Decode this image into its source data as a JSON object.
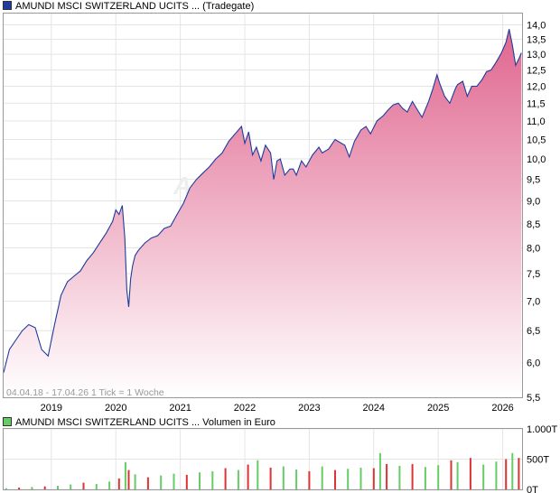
{
  "chart_data": [
    {
      "type": "area",
      "legend_label": "AMUNDI MSCI SWITZERLAND UCITS ... (Tradegate)",
      "info_text": "04.04.18 - 17.04.26   1 Tick = 1 Woche",
      "watermark": "A",
      "y_ticks": [
        "14,0",
        "13,5",
        "13,0",
        "12,5",
        "12,0",
        "11,5",
        "11,0",
        "10,5",
        "10,0",
        "9,5",
        "9,0",
        "8,5",
        "8,0",
        "7,5",
        "7,0",
        "6,5",
        "6,0",
        "5,5"
      ],
      "x_ticks": [
        "2019",
        "2020",
        "2021",
        "2022",
        "2023",
        "2024",
        "2025",
        "2026"
      ],
      "ylim": [
        5.5,
        14.4
      ],
      "y_scale": "log",
      "grid": true,
      "colors": {
        "line": "#1f3b9e",
        "fill_top": "#e0668f",
        "fill_bottom": "#ffffff"
      },
      "x": [
        2018.26,
        2018.35,
        2018.45,
        2018.55,
        2018.65,
        2018.75,
        2018.85,
        2018.95,
        2019.05,
        2019.15,
        2019.25,
        2019.35,
        2019.45,
        2019.55,
        2019.65,
        2019.75,
        2019.85,
        2019.95,
        2020.0,
        2020.05,
        2020.1,
        2020.14,
        2020.17,
        2020.2,
        2020.23,
        2020.26,
        2020.3,
        2020.35,
        2020.45,
        2020.55,
        2020.65,
        2020.75,
        2020.85,
        2020.95,
        2021.05,
        2021.15,
        2021.25,
        2021.35,
        2021.45,
        2021.55,
        2021.65,
        2021.75,
        2021.85,
        2021.95,
        2022.0,
        2022.06,
        2022.12,
        2022.18,
        2022.25,
        2022.32,
        2022.4,
        2022.45,
        2022.5,
        2022.55,
        2022.62,
        2022.7,
        2022.75,
        2022.8,
        2022.88,
        2022.95,
        2023.05,
        2023.15,
        2023.2,
        2023.3,
        2023.4,
        2023.45,
        2023.55,
        2023.62,
        2023.7,
        2023.8,
        2023.88,
        2023.95,
        2024.05,
        2024.15,
        2024.22,
        2024.3,
        2024.38,
        2024.45,
        2024.52,
        2024.6,
        2024.68,
        2024.75,
        2024.85,
        2024.92,
        2024.98,
        2025.02,
        2025.1,
        2025.18,
        2025.22,
        2025.27,
        2025.3,
        2025.38,
        2025.45,
        2025.52,
        2025.6,
        2025.68,
        2025.75,
        2025.82,
        2025.9,
        2025.98,
        2026.05,
        2026.1,
        2026.15,
        2026.2,
        2026.25,
        2026.29
      ],
      "y": [
        5.85,
        6.2,
        6.35,
        6.5,
        6.6,
        6.55,
        6.2,
        6.1,
        6.6,
        7.1,
        7.35,
        7.45,
        7.55,
        7.75,
        7.9,
        8.1,
        8.3,
        8.55,
        8.8,
        8.7,
        8.9,
        8.2,
        7.2,
        6.9,
        7.4,
        7.65,
        7.85,
        7.95,
        8.1,
        8.2,
        8.25,
        8.4,
        8.45,
        8.7,
        8.95,
        9.3,
        9.5,
        9.65,
        9.8,
        10.0,
        10.15,
        10.45,
        10.65,
        10.85,
        10.4,
        10.7,
        10.1,
        10.3,
        9.95,
        10.35,
        10.15,
        9.5,
        9.95,
        10.0,
        9.6,
        9.75,
        9.75,
        9.6,
        9.95,
        9.8,
        10.1,
        10.3,
        10.15,
        10.25,
        10.5,
        10.45,
        10.35,
        10.05,
        10.45,
        10.75,
        10.85,
        10.65,
        11.0,
        11.15,
        11.3,
        11.45,
        11.5,
        11.35,
        11.25,
        11.55,
        11.3,
        11.1,
        11.55,
        11.95,
        12.35,
        12.1,
        11.7,
        11.5,
        11.7,
        11.95,
        12.05,
        12.15,
        11.7,
        12.0,
        12.0,
        12.2,
        12.45,
        12.5,
        12.75,
        13.05,
        13.4,
        13.85,
        13.3,
        12.65,
        12.85,
        13.05
      ]
    },
    {
      "type": "bar",
      "legend_label": "AMUNDI MSCI SWITZERLAND UCITS ... Volumen in Euro",
      "y_ticks": [
        "1.000T",
        "500T",
        "0T"
      ],
      "ylim": [
        0,
        1000
      ],
      "colors": {
        "up": "#66cc66",
        "down": "#dd3333"
      },
      "x": [
        2018.3,
        2018.5,
        2018.7,
        2018.9,
        2019.1,
        2019.3,
        2019.5,
        2019.7,
        2019.9,
        2020.05,
        2020.15,
        2020.2,
        2020.3,
        2020.5,
        2020.7,
        2020.9,
        2021.1,
        2021.3,
        2021.5,
        2021.7,
        2021.9,
        2022.05,
        2022.2,
        2022.4,
        2022.6,
        2022.8,
        2023.0,
        2023.2,
        2023.4,
        2023.6,
        2023.8,
        2024.0,
        2024.1,
        2024.2,
        2024.4,
        2024.6,
        2024.8,
        2025.0,
        2025.2,
        2025.3,
        2025.5,
        2025.7,
        2025.9,
        2026.05,
        2026.15,
        2026.25
      ],
      "values": [
        20,
        30,
        40,
        50,
        60,
        80,
        110,
        90,
        130,
        180,
        450,
        320,
        250,
        200,
        230,
        260,
        240,
        280,
        300,
        350,
        320,
        410,
        480,
        360,
        380,
        330,
        300,
        380,
        320,
        340,
        360,
        350,
        600,
        420,
        390,
        420,
        370,
        400,
        480,
        450,
        520,
        410,
        460,
        500,
        600,
        520
      ],
      "direction": [
        "up",
        "down",
        "up",
        "down",
        "up",
        "up",
        "down",
        "up",
        "up",
        "down",
        "up",
        "down",
        "up",
        "down",
        "up",
        "up",
        "down",
        "up",
        "up",
        "down",
        "up",
        "down",
        "up",
        "down",
        "up",
        "up",
        "down",
        "up",
        "down",
        "up",
        "up",
        "down",
        "up",
        "down",
        "up",
        "down",
        "up",
        "up",
        "down",
        "up",
        "down",
        "up",
        "up",
        "down",
        "up",
        "down"
      ]
    }
  ]
}
